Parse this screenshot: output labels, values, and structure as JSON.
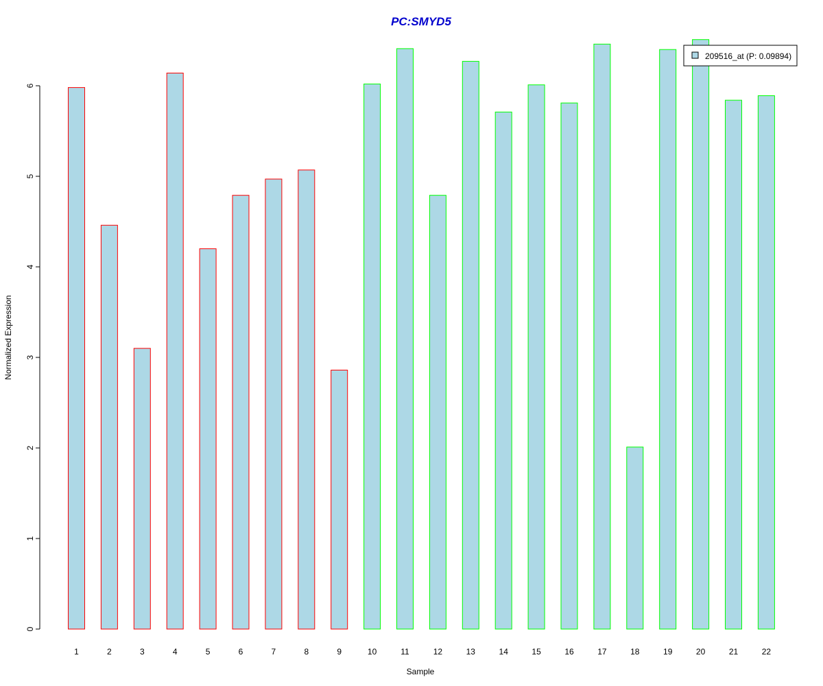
{
  "chart_data": {
    "type": "bar",
    "title": "PC:SMYD5",
    "xlabel": "Sample",
    "ylabel": "Normalized Expression",
    "categories": [
      "1",
      "2",
      "3",
      "4",
      "5",
      "6",
      "7",
      "8",
      "9",
      "10",
      "11",
      "12",
      "13",
      "14",
      "15",
      "16",
      "17",
      "18",
      "19",
      "20",
      "21",
      "22"
    ],
    "values": [
      5.98,
      4.46,
      3.1,
      6.14,
      4.2,
      4.79,
      4.97,
      5.07,
      2.86,
      6.02,
      6.41,
      4.79,
      6.27,
      5.71,
      6.01,
      5.81,
      6.46,
      2.01,
      6.4,
      6.51,
      5.84,
      5.89
    ],
    "groups": [
      1,
      1,
      1,
      1,
      1,
      1,
      1,
      1,
      1,
      2,
      2,
      2,
      2,
      2,
      2,
      2,
      2,
      2,
      2,
      2,
      2,
      2
    ],
    "yticks": [
      "0",
      "1",
      "2",
      "3",
      "4",
      "5",
      "6"
    ],
    "ylim": [
      0,
      6.6
    ],
    "legend": {
      "label": "209516_at (P: 0.09894)",
      "position": "top-right"
    },
    "colors": {
      "fill": "#add8e6",
      "group1_border": "#ff0000",
      "group2_border": "#00ff00",
      "title": "#0000cd"
    },
    "grid": false
  }
}
